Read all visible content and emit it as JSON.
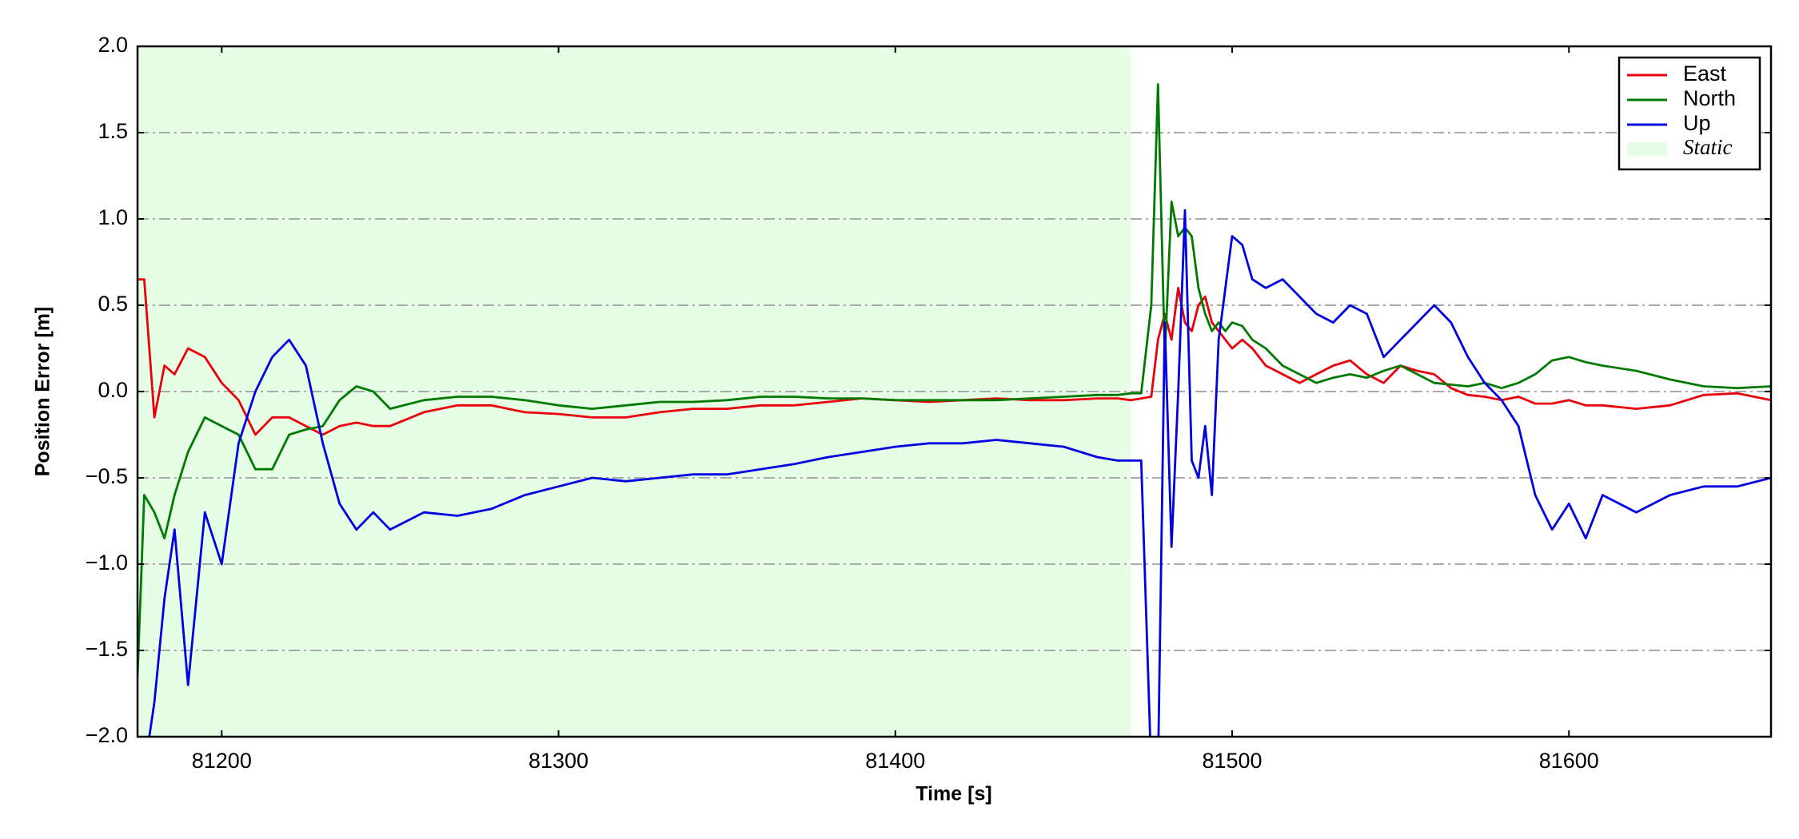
{
  "chart_data": {
    "type": "line",
    "xlabel": "Time [s]",
    "ylabel": "Position Error [m]",
    "x": [
      81175,
      81177,
      81180,
      81183,
      81186,
      81190,
      81195,
      81200,
      81205,
      81210,
      81215,
      81220,
      81225,
      81230,
      81235,
      81240,
      81245,
      81250,
      81260,
      81270,
      81280,
      81290,
      81300,
      81310,
      81320,
      81330,
      81340,
      81350,
      81360,
      81370,
      81380,
      81390,
      81400,
      81410,
      81420,
      81430,
      81440,
      81450,
      81460,
      81466,
      81470,
      81473,
      81476,
      81478,
      81480,
      81482,
      81484,
      81486,
      81488,
      81490,
      81492,
      81494,
      81496,
      81498,
      81500,
      81503,
      81506,
      81510,
      81515,
      81520,
      81525,
      81530,
      81535,
      81540,
      81545,
      81550,
      81555,
      81560,
      81565,
      81570,
      81575,
      81580,
      81585,
      81590,
      81595,
      81600,
      81605,
      81610,
      81620,
      81630,
      81640,
      81650,
      81660
    ],
    "series": [
      {
        "name": "East",
        "color": "#e8000b",
        "values": [
          0.65,
          0.65,
          -0.15,
          0.15,
          0.1,
          0.25,
          0.2,
          0.05,
          -0.05,
          -0.25,
          -0.15,
          -0.15,
          -0.2,
          -0.25,
          -0.2,
          -0.18,
          -0.2,
          -0.2,
          -0.12,
          -0.08,
          -0.08,
          -0.12,
          -0.13,
          -0.15,
          -0.15,
          -0.12,
          -0.1,
          -0.1,
          -0.08,
          -0.08,
          -0.06,
          -0.04,
          -0.05,
          -0.06,
          -0.05,
          -0.04,
          -0.05,
          -0.05,
          -0.04,
          -0.04,
          -0.05,
          -0.04,
          -0.03,
          0.3,
          0.45,
          0.3,
          0.6,
          0.4,
          0.35,
          0.5,
          0.55,
          0.4,
          0.35,
          0.3,
          0.25,
          0.3,
          0.25,
          0.15,
          0.1,
          0.05,
          0.1,
          0.15,
          0.18,
          0.1,
          0.05,
          0.15,
          0.12,
          0.1,
          0.02,
          -0.02,
          -0.03,
          -0.05,
          -0.03,
          -0.07,
          -0.07,
          -0.05,
          -0.08,
          -0.08,
          -0.1,
          -0.08,
          -0.02,
          -0.01,
          -0.05
        ]
      },
      {
        "name": "North",
        "color": "#007a00",
        "values": [
          -1.65,
          -0.6,
          -0.7,
          -0.85,
          -0.6,
          -0.35,
          -0.15,
          -0.2,
          -0.25,
          -0.45,
          -0.45,
          -0.25,
          -0.22,
          -0.2,
          -0.05,
          0.03,
          0.0,
          -0.1,
          -0.05,
          -0.03,
          -0.03,
          -0.05,
          -0.08,
          -0.1,
          -0.08,
          -0.06,
          -0.06,
          -0.05,
          -0.03,
          -0.03,
          -0.04,
          -0.04,
          -0.05,
          -0.05,
          -0.05,
          -0.05,
          -0.04,
          -0.03,
          -0.02,
          -0.02,
          -0.01,
          -0.01,
          0.5,
          1.78,
          0.2,
          1.1,
          0.9,
          0.95,
          0.9,
          0.6,
          0.45,
          0.35,
          0.4,
          0.35,
          0.4,
          0.38,
          0.3,
          0.25,
          0.15,
          0.1,
          0.05,
          0.08,
          0.1,
          0.08,
          0.12,
          0.15,
          0.1,
          0.05,
          0.04,
          0.03,
          0.05,
          0.02,
          0.05,
          0.1,
          0.18,
          0.2,
          0.17,
          0.15,
          0.12,
          0.07,
          0.03,
          0.02,
          0.03
        ]
      },
      {
        "name": "Up",
        "color": "#0000e0",
        "values": [
          null,
          -2.2,
          -1.8,
          -1.2,
          -0.8,
          -1.7,
          -0.7,
          -1.0,
          -0.3,
          0.0,
          0.2,
          0.3,
          0.15,
          -0.3,
          -0.65,
          -0.8,
          -0.7,
          -0.8,
          -0.7,
          -0.72,
          -0.68,
          -0.6,
          -0.55,
          -0.5,
          -0.52,
          -0.5,
          -0.48,
          -0.48,
          -0.45,
          -0.42,
          -0.38,
          -0.35,
          -0.32,
          -0.3,
          -0.3,
          -0.28,
          -0.3,
          -0.32,
          -0.38,
          -0.4,
          -0.4,
          -0.4,
          -2.2,
          -2.2,
          0.4,
          -0.9,
          0.0,
          1.05,
          -0.4,
          -0.5,
          -0.2,
          -0.6,
          0.3,
          0.6,
          0.9,
          0.85,
          0.65,
          0.6,
          0.65,
          0.55,
          0.45,
          0.4,
          0.5,
          0.45,
          0.2,
          0.3,
          0.4,
          0.5,
          0.4,
          0.2,
          0.05,
          -0.05,
          -0.2,
          -0.6,
          -0.8,
          -0.65,
          -0.85,
          -0.6,
          -0.7,
          -0.6,
          -0.55,
          -0.55,
          -0.5
        ]
      }
    ],
    "spans": [
      {
        "name": "Static",
        "start": 81175,
        "end": 81470,
        "color": "#e6fde6"
      }
    ],
    "xlim": [
      81175,
      81660
    ],
    "ylim": [
      -2,
      2
    ],
    "xticks": [
      81200,
      81300,
      81400,
      81500,
      81600
    ],
    "yticks": [
      {
        "value": -2,
        "label": "−2.0"
      },
      {
        "value": -1.5,
        "label": "−1.5"
      },
      {
        "value": -1,
        "label": "−1.0"
      },
      {
        "value": -0.5,
        "label": "−0.5"
      },
      {
        "value": 0,
        "label": "0.0"
      },
      {
        "value": 0.5,
        "label": "0.5"
      },
      {
        "value": 1,
        "label": "1.0"
      },
      {
        "value": 1.5,
        "label": "1.5"
      },
      {
        "value": 2,
        "label": "2.0"
      }
    ],
    "grid": true,
    "legend": "upper right"
  }
}
